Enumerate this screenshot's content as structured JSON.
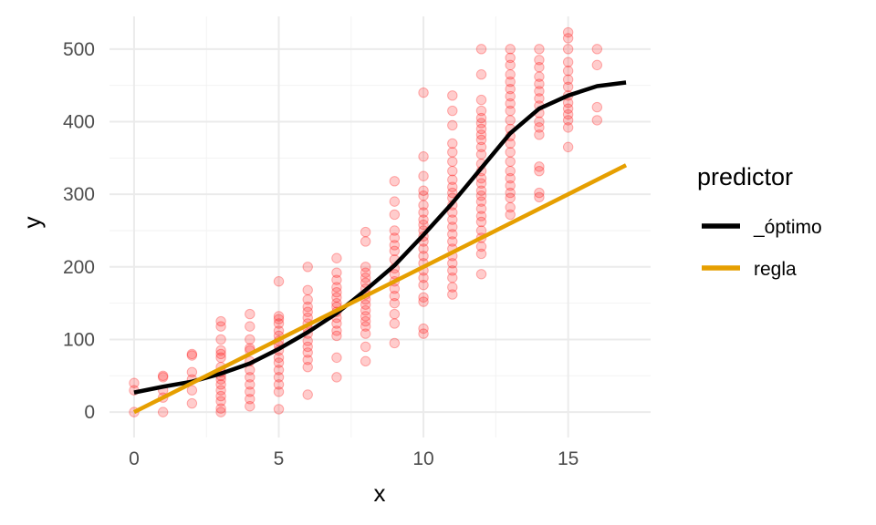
{
  "chart_data": {
    "type": "scatter",
    "title": "",
    "xlabel": "x",
    "ylabel": "y",
    "xlim": [
      -0.85,
      17.85
    ],
    "ylim": [
      -35,
      545
    ],
    "xticks": [
      0,
      5,
      10,
      15
    ],
    "yticks": [
      0,
      100,
      200,
      300,
      400,
      500
    ],
    "grid": true,
    "point_color": "#ff0000",
    "points": [
      [
        0,
        40
      ],
      [
        0,
        30
      ],
      [
        0,
        0
      ],
      [
        1,
        50
      ],
      [
        1,
        48
      ],
      [
        1,
        30
      ],
      [
        1,
        20
      ],
      [
        1,
        0
      ],
      [
        2,
        80
      ],
      [
        2,
        78
      ],
      [
        2,
        55
      ],
      [
        2,
        45
      ],
      [
        2,
        30
      ],
      [
        2,
        12
      ],
      [
        3,
        125
      ],
      [
        3,
        118
      ],
      [
        3,
        100
      ],
      [
        3,
        85
      ],
      [
        3,
        80
      ],
      [
        3,
        75
      ],
      [
        3,
        62
      ],
      [
        3,
        55
      ],
      [
        3,
        50
      ],
      [
        3,
        45
      ],
      [
        3,
        38
      ],
      [
        3,
        30
      ],
      [
        3,
        22
      ],
      [
        3,
        15
      ],
      [
        3,
        5
      ],
      [
        3,
        0
      ],
      [
        4,
        135
      ],
      [
        4,
        118
      ],
      [
        4,
        100
      ],
      [
        4,
        88
      ],
      [
        4,
        85
      ],
      [
        4,
        70
      ],
      [
        4,
        58
      ],
      [
        4,
        48
      ],
      [
        4,
        38
      ],
      [
        4,
        28
      ],
      [
        4,
        18
      ],
      [
        4,
        8
      ],
      [
        5,
        180
      ],
      [
        5,
        132
      ],
      [
        5,
        128
      ],
      [
        5,
        122
      ],
      [
        5,
        112
      ],
      [
        5,
        105
      ],
      [
        5,
        98
      ],
      [
        5,
        92
      ],
      [
        5,
        85
      ],
      [
        5,
        75
      ],
      [
        5,
        68
      ],
      [
        5,
        58
      ],
      [
        5,
        48
      ],
      [
        5,
        38
      ],
      [
        5,
        28
      ],
      [
        5,
        4
      ],
      [
        6,
        200
      ],
      [
        6,
        168
      ],
      [
        6,
        155
      ],
      [
        6,
        145
      ],
      [
        6,
        138
      ],
      [
        6,
        130
      ],
      [
        6,
        122
      ],
      [
        6,
        115
      ],
      [
        6,
        108
      ],
      [
        6,
        98
      ],
      [
        6,
        90
      ],
      [
        6,
        82
      ],
      [
        6,
        72
      ],
      [
        6,
        62
      ],
      [
        6,
        24
      ],
      [
        7,
        212
      ],
      [
        7,
        192
      ],
      [
        7,
        182
      ],
      [
        7,
        172
      ],
      [
        7,
        165
      ],
      [
        7,
        158
      ],
      [
        7,
        150
      ],
      [
        7,
        145
      ],
      [
        7,
        138
      ],
      [
        7,
        130
      ],
      [
        7,
        122
      ],
      [
        7,
        112
      ],
      [
        7,
        105
      ],
      [
        7,
        75
      ],
      [
        7,
        48
      ],
      [
        8,
        248
      ],
      [
        8,
        235
      ],
      [
        8,
        200
      ],
      [
        8,
        192
      ],
      [
        8,
        185
      ],
      [
        8,
        178
      ],
      [
        8,
        170
      ],
      [
        8,
        162
      ],
      [
        8,
        155
      ],
      [
        8,
        148
      ],
      [
        8,
        140
      ],
      [
        8,
        132
      ],
      [
        8,
        125
      ],
      [
        8,
        118
      ],
      [
        8,
        108
      ],
      [
        8,
        90
      ],
      [
        8,
        70
      ],
      [
        9,
        318
      ],
      [
        9,
        290
      ],
      [
        9,
        272
      ],
      [
        9,
        250
      ],
      [
        9,
        240
      ],
      [
        9,
        230
      ],
      [
        9,
        222
      ],
      [
        9,
        210
      ],
      [
        9,
        198
      ],
      [
        9,
        190
      ],
      [
        9,
        180
      ],
      [
        9,
        170
      ],
      [
        9,
        160
      ],
      [
        9,
        150
      ],
      [
        9,
        135
      ],
      [
        9,
        122
      ],
      [
        9,
        95
      ],
      [
        10,
        440
      ],
      [
        10,
        352
      ],
      [
        10,
        325
      ],
      [
        10,
        305
      ],
      [
        10,
        298
      ],
      [
        10,
        285
      ],
      [
        10,
        275
      ],
      [
        10,
        265
      ],
      [
        10,
        258
      ],
      [
        10,
        250
      ],
      [
        10,
        242
      ],
      [
        10,
        235
      ],
      [
        10,
        225
      ],
      [
        10,
        215
      ],
      [
        10,
        205
      ],
      [
        10,
        195
      ],
      [
        10,
        185
      ],
      [
        10,
        175
      ],
      [
        10,
        158
      ],
      [
        10,
        152
      ],
      [
        10,
        115
      ],
      [
        10,
        108
      ],
      [
        11,
        436
      ],
      [
        11,
        415
      ],
      [
        11,
        395
      ],
      [
        11,
        370
      ],
      [
        11,
        358
      ],
      [
        11,
        345
      ],
      [
        11,
        332
      ],
      [
        11,
        320
      ],
      [
        11,
        310
      ],
      [
        11,
        302
      ],
      [
        11,
        295
      ],
      [
        11,
        285
      ],
      [
        11,
        275
      ],
      [
        11,
        265
      ],
      [
        11,
        255
      ],
      [
        11,
        245
      ],
      [
        11,
        235
      ],
      [
        11,
        225
      ],
      [
        11,
        215
      ],
      [
        11,
        205
      ],
      [
        11,
        195
      ],
      [
        11,
        185
      ],
      [
        11,
        172
      ],
      [
        11,
        162
      ],
      [
        12,
        500
      ],
      [
        12,
        465
      ],
      [
        12,
        430
      ],
      [
        12,
        415
      ],
      [
        12,
        405
      ],
      [
        12,
        398
      ],
      [
        12,
        390
      ],
      [
        12,
        382
      ],
      [
        12,
        375
      ],
      [
        12,
        365
      ],
      [
        12,
        355
      ],
      [
        12,
        342
      ],
      [
        12,
        332
      ],
      [
        12,
        322
      ],
      [
        12,
        315
      ],
      [
        12,
        305
      ],
      [
        12,
        298
      ],
      [
        12,
        290
      ],
      [
        12,
        280
      ],
      [
        12,
        270
      ],
      [
        12,
        262
      ],
      [
        12,
        250
      ],
      [
        12,
        240
      ],
      [
        12,
        228
      ],
      [
        12,
        218
      ],
      [
        12,
        190
      ],
      [
        13,
        500
      ],
      [
        13,
        488
      ],
      [
        13,
        478
      ],
      [
        13,
        465
      ],
      [
        13,
        455
      ],
      [
        13,
        445
      ],
      [
        13,
        435
      ],
      [
        13,
        425
      ],
      [
        13,
        415
      ],
      [
        13,
        402
      ],
      [
        13,
        390
      ],
      [
        13,
        380
      ],
      [
        13,
        370
      ],
      [
        13,
        358
      ],
      [
        13,
        345
      ],
      [
        13,
        332
      ],
      [
        13,
        322
      ],
      [
        13,
        312
      ],
      [
        13,
        302
      ],
      [
        13,
        295
      ],
      [
        13,
        282
      ],
      [
        13,
        272
      ],
      [
        14,
        500
      ],
      [
        14,
        485
      ],
      [
        14,
        475
      ],
      [
        14,
        462
      ],
      [
        14,
        452
      ],
      [
        14,
        442
      ],
      [
        14,
        432
      ],
      [
        14,
        422
      ],
      [
        14,
        412
      ],
      [
        14,
        400
      ],
      [
        14,
        392
      ],
      [
        14,
        382
      ],
      [
        14,
        338
      ],
      [
        14,
        332
      ],
      [
        14,
        302
      ],
      [
        14,
        296
      ],
      [
        15,
        523
      ],
      [
        15,
        515
      ],
      [
        15,
        500
      ],
      [
        15,
        482
      ],
      [
        15,
        470
      ],
      [
        15,
        458
      ],
      [
        15,
        448
      ],
      [
        15,
        436
      ],
      [
        15,
        426
      ],
      [
        15,
        418
      ],
      [
        15,
        410
      ],
      [
        15,
        402
      ],
      [
        15,
        392
      ],
      [
        15,
        365
      ],
      [
        16,
        500
      ],
      [
        16,
        478
      ],
      [
        16,
        420
      ],
      [
        16,
        402
      ]
    ],
    "series": [
      {
        "name": "_óptimo",
        "color": "#000000",
        "x": [
          0,
          1,
          2,
          3,
          4,
          5,
          6,
          7,
          8,
          9,
          10,
          11,
          12,
          13,
          14,
          15,
          16,
          17
        ],
        "y": [
          27,
          35,
          42,
          53,
          67,
          87,
          110,
          136,
          168,
          202,
          244,
          288,
          336,
          384,
          418,
          436,
          449,
          454
        ]
      },
      {
        "name": "regla",
        "color": "#e69f00",
        "x": [
          0,
          17
        ],
        "y": [
          0,
          340
        ]
      }
    ],
    "legend": {
      "title": "predictor",
      "position": "right"
    }
  }
}
